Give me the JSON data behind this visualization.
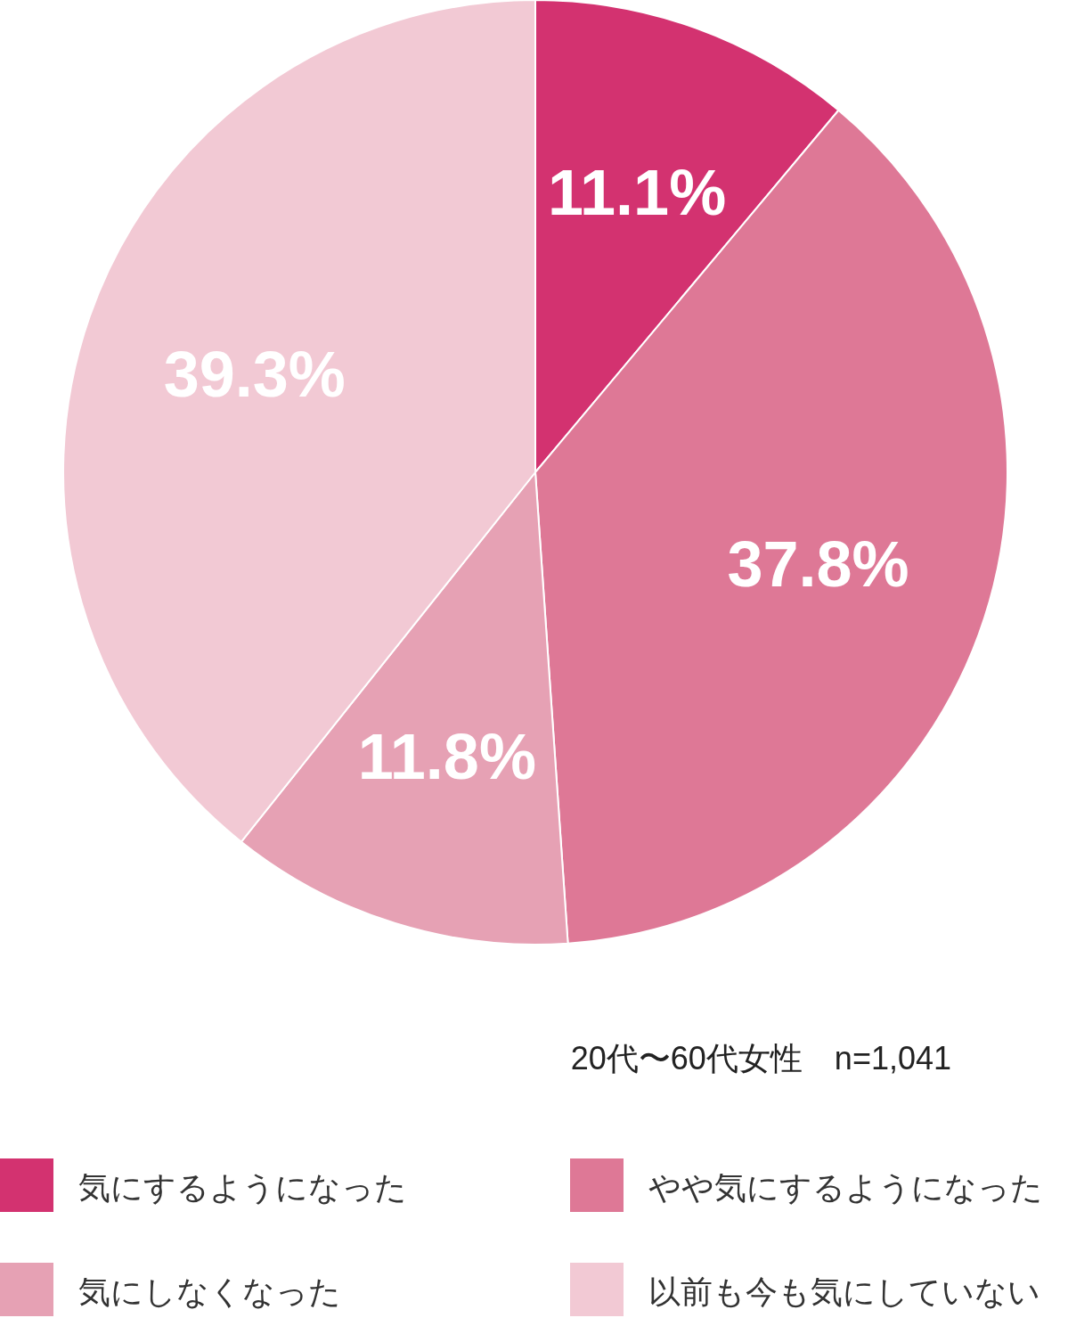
{
  "chart_data": {
    "type": "pie",
    "categories": [
      "気にするようになった",
      "やや気にするようになった",
      "気にしなくなった",
      "以前も今も気にしていない"
    ],
    "values": [
      11.1,
      37.8,
      11.8,
      39.3
    ],
    "value_labels": [
      "11.1%",
      "37.8%",
      "11.8%",
      "39.3%"
    ],
    "colors": [
      "#d33270",
      "#de7896",
      "#e6a1b4",
      "#f2c9d4"
    ],
    "annotations": [
      "20代〜60代女性　n=1,041"
    ],
    "legend": "bottom"
  }
}
